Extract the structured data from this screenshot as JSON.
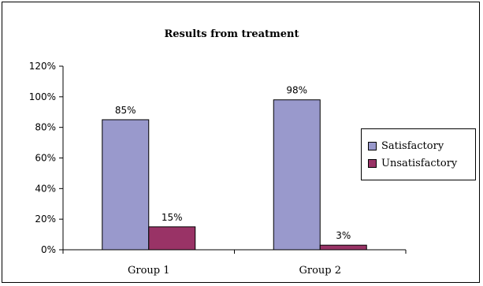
{
  "chart_data": {
    "type": "bar",
    "title": "Results from treatment",
    "categories": [
      "Group 1",
      "Group 2"
    ],
    "series": [
      {
        "name": "Satisfactory",
        "values": [
          85,
          98
        ],
        "labels": [
          "85%",
          "98%"
        ],
        "color": "#9999cc"
      },
      {
        "name": "Unsatisfactory",
        "values": [
          15,
          3
        ],
        "labels": [
          "15%",
          "3%"
        ],
        "color": "#993366"
      }
    ],
    "ylim": [
      0,
      120
    ],
    "yticks": [
      {
        "value": 0,
        "label": "0%"
      },
      {
        "value": 20,
        "label": "20%"
      },
      {
        "value": 40,
        "label": "40%"
      },
      {
        "value": 60,
        "label": "60%"
      },
      {
        "value": 80,
        "label": "80%"
      },
      {
        "value": 100,
        "label": "100%"
      },
      {
        "value": 120,
        "label": "120%"
      }
    ],
    "xlabel": "",
    "ylabel": "",
    "grid": false,
    "legend_position": "right"
  }
}
